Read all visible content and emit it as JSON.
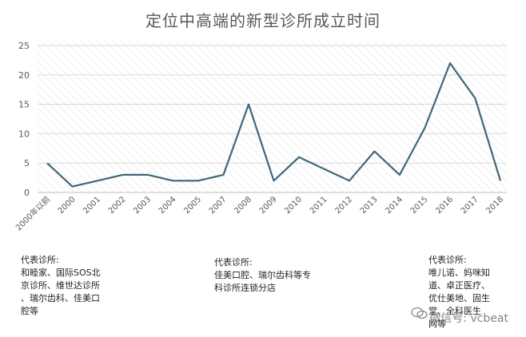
{
  "chart_data": {
    "type": "line",
    "title": "定位中高端的新型诊所成立时间",
    "categories": [
      "2000年以前",
      "2000",
      "2001",
      "2002",
      "2003",
      "2004",
      "2005",
      "2007",
      "2008",
      "2009",
      "2010",
      "2011",
      "2012",
      "2013",
      "2014",
      "2015",
      "2016",
      "2017",
      "2018"
    ],
    "series": [
      {
        "values": [
          5,
          1,
          2,
          3,
          3,
          2,
          2,
          3,
          15,
          2,
          6,
          4,
          2,
          7,
          3,
          11,
          22,
          16,
          2
        ]
      }
    ],
    "ylim": [
      0,
      25
    ],
    "yticks": [
      0,
      5,
      10,
      15,
      20,
      25
    ],
    "grid": true,
    "line_color": "#3f6777"
  },
  "annotations": [
    {
      "lines": [
        "代表诊所:",
        "和睦家、国际SOS北",
        "京诊所、维世达诊所",
        "、瑞尔齿科、佳美口",
        "腔等"
      ]
    },
    {
      "lines": [
        "代表诊所:",
        "佳美口腔、瑞尔齿科等专",
        "科诊所连锁分店"
      ]
    },
    {
      "lines": [
        "代表诊所:",
        "唯儿诺、妈咪知",
        "道、卓正医疗、",
        "优仕美地、固生",
        "堂、全科医生",
        "网等"
      ]
    }
  ],
  "watermark": {
    "text": "微信号: vcbeat"
  }
}
